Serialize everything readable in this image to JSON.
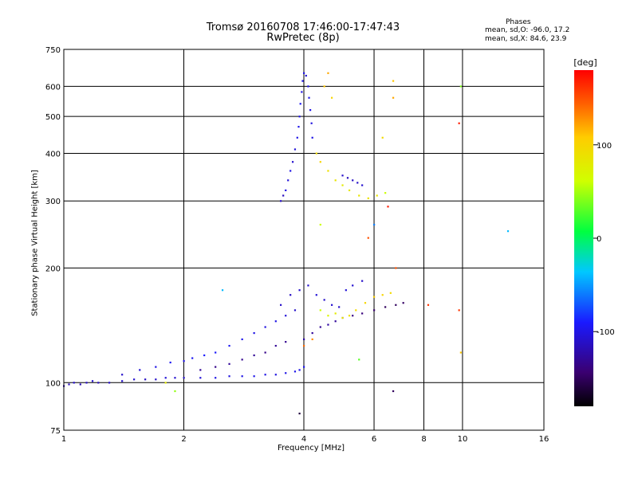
{
  "header": {
    "title_line1": "Tromsø 20160708 17:46:00-17:47:43",
    "title_line2": "RwPretec (8p)",
    "phases_heading": "Phases",
    "phases_o": "mean, sd,O: -96.0, 17.2",
    "phases_x": "mean, sd,X:  84.6, 23.9"
  },
  "chart_data": {
    "type": "scatter",
    "title": "Tromsø 20160708 17:46:00-17:47:43",
    "subtitle": "RwPretec (8p)",
    "xlabel": "Frequency [MHz]",
    "ylabel": "Stationary phase Virtual Height [km]",
    "x_scale": "log",
    "y_scale": "log",
    "xlim": [
      1,
      16
    ],
    "ylim": [
      75,
      750
    ],
    "x_ticks": [
      1,
      2,
      4,
      6,
      8,
      10,
      16
    ],
    "y_ticks": [
      75,
      100,
      200,
      300,
      400,
      500,
      600,
      750
    ],
    "grid": true,
    "colorbar": {
      "label": "[deg]",
      "ticks": [
        100,
        0,
        -100
      ],
      "range": [
        -180,
        180
      ]
    },
    "series": [
      {
        "points": [
          {
            "x": 1.0,
            "y": 98,
            "phase": -120
          },
          {
            "x": 1.03,
            "y": 99,
            "phase": -115
          },
          {
            "x": 1.06,
            "y": 100,
            "phase": -110
          },
          {
            "x": 1.1,
            "y": 99,
            "phase": -118
          },
          {
            "x": 1.14,
            "y": 100,
            "phase": -112
          },
          {
            "x": 1.18,
            "y": 101,
            "phase": -108
          },
          {
            "x": 1.22,
            "y": 100,
            "phase": -115
          },
          {
            "x": 1.3,
            "y": 100,
            "phase": -112
          },
          {
            "x": 1.4,
            "y": 101,
            "phase": -110
          },
          {
            "x": 1.5,
            "y": 102,
            "phase": -108
          },
          {
            "x": 1.6,
            "y": 102,
            "phase": -112
          },
          {
            "x": 1.7,
            "y": 102,
            "phase": -110
          },
          {
            "x": 1.8,
            "y": 103,
            "phase": -105
          },
          {
            "x": 1.9,
            "y": 103,
            "phase": -108
          },
          {
            "x": 2.0,
            "y": 103,
            "phase": -110
          },
          {
            "x": 2.2,
            "y": 103,
            "phase": -105
          },
          {
            "x": 2.4,
            "y": 103,
            "phase": -100
          },
          {
            "x": 2.6,
            "y": 104,
            "phase": -102
          },
          {
            "x": 2.8,
            "y": 104,
            "phase": -100
          },
          {
            "x": 3.0,
            "y": 104,
            "phase": -98
          },
          {
            "x": 3.2,
            "y": 105,
            "phase": -100
          },
          {
            "x": 3.4,
            "y": 105,
            "phase": -102
          },
          {
            "x": 3.6,
            "y": 106,
            "phase": -100
          },
          {
            "x": 3.8,
            "y": 107,
            "phase": -98
          },
          {
            "x": 3.9,
            "y": 108,
            "phase": -100
          },
          {
            "x": 4.0,
            "y": 110,
            "phase": -95
          },
          {
            "x": 1.4,
            "y": 105,
            "phase": -110
          },
          {
            "x": 1.55,
            "y": 108,
            "phase": -105
          },
          {
            "x": 1.7,
            "y": 110,
            "phase": -100
          },
          {
            "x": 1.85,
            "y": 113,
            "phase": -95
          },
          {
            "x": 2.0,
            "y": 114,
            "phase": -100
          },
          {
            "x": 2.1,
            "y": 116,
            "phase": -95
          },
          {
            "x": 2.25,
            "y": 118,
            "phase": -90
          },
          {
            "x": 2.4,
            "y": 120,
            "phase": -92
          },
          {
            "x": 2.6,
            "y": 125,
            "phase": -95
          },
          {
            "x": 2.8,
            "y": 130,
            "phase": -98
          },
          {
            "x": 3.0,
            "y": 135,
            "phase": -100
          },
          {
            "x": 3.2,
            "y": 140,
            "phase": -102
          },
          {
            "x": 3.4,
            "y": 145,
            "phase": -100
          },
          {
            "x": 3.6,
            "y": 150,
            "phase": -105
          },
          {
            "x": 3.8,
            "y": 155,
            "phase": -110
          },
          {
            "x": 2.2,
            "y": 108,
            "phase": -130
          },
          {
            "x": 2.4,
            "y": 110,
            "phase": -135
          },
          {
            "x": 2.6,
            "y": 112,
            "phase": -128
          },
          {
            "x": 2.8,
            "y": 115,
            "phase": -132
          },
          {
            "x": 3.0,
            "y": 118,
            "phase": -130
          },
          {
            "x": 3.2,
            "y": 120,
            "phase": -135
          },
          {
            "x": 3.4,
            "y": 125,
            "phase": -130
          },
          {
            "x": 3.6,
            "y": 128,
            "phase": -132
          },
          {
            "x": 3.5,
            "y": 160,
            "phase": -110
          },
          {
            "x": 3.7,
            "y": 170,
            "phase": -112
          },
          {
            "x": 3.9,
            "y": 175,
            "phase": -110
          },
          {
            "x": 4.1,
            "y": 180,
            "phase": -108
          },
          {
            "x": 4.3,
            "y": 170,
            "phase": -105
          },
          {
            "x": 4.5,
            "y": 165,
            "phase": -110
          },
          {
            "x": 4.7,
            "y": 160,
            "phase": -108
          },
          {
            "x": 4.9,
            "y": 158,
            "phase": -110
          },
          {
            "x": 5.1,
            "y": 175,
            "phase": -105
          },
          {
            "x": 5.3,
            "y": 180,
            "phase": -108
          },
          {
            "x": 5.6,
            "y": 185,
            "phase": -110
          },
          {
            "x": 4.0,
            "y": 130,
            "phase": -125
          },
          {
            "x": 4.2,
            "y": 135,
            "phase": -128
          },
          {
            "x": 4.4,
            "y": 140,
            "phase": -130
          },
          {
            "x": 4.6,
            "y": 142,
            "phase": -125
          },
          {
            "x": 4.8,
            "y": 145,
            "phase": -128
          },
          {
            "x": 5.0,
            "y": 148,
            "phase": -130
          },
          {
            "x": 5.3,
            "y": 150,
            "phase": -135
          },
          {
            "x": 5.6,
            "y": 152,
            "phase": -140
          },
          {
            "x": 6.0,
            "y": 155,
            "phase": -145
          },
          {
            "x": 6.4,
            "y": 158,
            "phase": -150
          },
          {
            "x": 6.8,
            "y": 160,
            "phase": -150
          },
          {
            "x": 7.1,
            "y": 162,
            "phase": -148
          },
          {
            "x": 4.4,
            "y": 155,
            "phase": 60
          },
          {
            "x": 4.6,
            "y": 150,
            "phase": 70
          },
          {
            "x": 4.8,
            "y": 152,
            "phase": 80
          },
          {
            "x": 5.0,
            "y": 148,
            "phase": 85
          },
          {
            "x": 5.2,
            "y": 150,
            "phase": 90
          },
          {
            "x": 5.4,
            "y": 155,
            "phase": 95
          },
          {
            "x": 5.7,
            "y": 162,
            "phase": 100
          },
          {
            "x": 6.0,
            "y": 168,
            "phase": 105
          },
          {
            "x": 6.3,
            "y": 170,
            "phase": 100
          },
          {
            "x": 6.6,
            "y": 172,
            "phase": 95
          },
          {
            "x": 4.2,
            "y": 130,
            "phase": 130
          },
          {
            "x": 4.0,
            "y": 125,
            "phase": 140
          },
          {
            "x": 3.6,
            "y": 320,
            "phase": -100
          },
          {
            "x": 3.65,
            "y": 340,
            "phase": -105
          },
          {
            "x": 3.7,
            "y": 360,
            "phase": -100
          },
          {
            "x": 3.75,
            "y": 380,
            "phase": -108
          },
          {
            "x": 3.8,
            "y": 410,
            "phase": -105
          },
          {
            "x": 3.85,
            "y": 440,
            "phase": -100
          },
          {
            "x": 3.88,
            "y": 470,
            "phase": -98
          },
          {
            "x": 3.9,
            "y": 500,
            "phase": -100
          },
          {
            "x": 3.92,
            "y": 540,
            "phase": -95
          },
          {
            "x": 3.95,
            "y": 580,
            "phase": -100
          },
          {
            "x": 3.97,
            "y": 620,
            "phase": -98
          },
          {
            "x": 4.0,
            "y": 650,
            "phase": -100
          },
          {
            "x": 4.05,
            "y": 640,
            "phase": -105
          },
          {
            "x": 4.1,
            "y": 600,
            "phase": -100
          },
          {
            "x": 4.12,
            "y": 560,
            "phase": -98
          },
          {
            "x": 4.15,
            "y": 520,
            "phase": -100
          },
          {
            "x": 4.18,
            "y": 480,
            "phase": -102
          },
          {
            "x": 4.2,
            "y": 440,
            "phase": -100
          },
          {
            "x": 3.55,
            "y": 310,
            "phase": -115
          },
          {
            "x": 3.5,
            "y": 300,
            "phase": -112
          },
          {
            "x": 4.3,
            "y": 400,
            "phase": 95
          },
          {
            "x": 4.4,
            "y": 380,
            "phase": 100
          },
          {
            "x": 4.6,
            "y": 360,
            "phase": 90
          },
          {
            "x": 4.8,
            "y": 340,
            "phase": 85
          },
          {
            "x": 5.0,
            "y": 330,
            "phase": 80
          },
          {
            "x": 5.2,
            "y": 320,
            "phase": 82
          },
          {
            "x": 5.5,
            "y": 310,
            "phase": 85
          },
          {
            "x": 5.8,
            "y": 305,
            "phase": 88
          },
          {
            "x": 6.1,
            "y": 310,
            "phase": 85
          },
          {
            "x": 6.4,
            "y": 315,
            "phase": 60
          },
          {
            "x": 5.0,
            "y": 350,
            "phase": -110
          },
          {
            "x": 5.15,
            "y": 345,
            "phase": -115
          },
          {
            "x": 5.3,
            "y": 340,
            "phase": -112
          },
          {
            "x": 5.45,
            "y": 335,
            "phase": -110
          },
          {
            "x": 5.6,
            "y": 330,
            "phase": -108
          },
          {
            "x": 4.6,
            "y": 650,
            "phase": 120
          },
          {
            "x": 4.5,
            "y": 600,
            "phase": 110
          },
          {
            "x": 4.7,
            "y": 560,
            "phase": 100
          },
          {
            "x": 6.7,
            "y": 620,
            "phase": 110
          },
          {
            "x": 6.7,
            "y": 560,
            "phase": 120
          },
          {
            "x": 9.8,
            "y": 480,
            "phase": 170
          },
          {
            "x": 6.3,
            "y": 440,
            "phase": 95
          },
          {
            "x": 6.5,
            "y": 290,
            "phase": 170
          },
          {
            "x": 6.8,
            "y": 200,
            "phase": 150
          },
          {
            "x": 8.2,
            "y": 160,
            "phase": 160
          },
          {
            "x": 9.8,
            "y": 155,
            "phase": 160
          },
          {
            "x": 9.9,
            "y": 120,
            "phase": 110
          },
          {
            "x": 6.7,
            "y": 95,
            "phase": -150
          },
          {
            "x": 3.9,
            "y": 83,
            "phase": -160
          },
          {
            "x": 9.9,
            "y": 600,
            "phase": 40
          },
          {
            "x": 13.0,
            "y": 250,
            "phase": -40
          },
          {
            "x": 1.8,
            "y": 100,
            "phase": 80
          },
          {
            "x": 2.5,
            "y": 175,
            "phase": -40
          },
          {
            "x": 1.9,
            "y": 95,
            "phase": 45
          },
          {
            "x": 5.5,
            "y": 115,
            "phase": 30
          },
          {
            "x": 4.4,
            "y": 260,
            "phase": 60
          },
          {
            "x": 5.8,
            "y": 240,
            "phase": 150
          },
          {
            "x": 6.0,
            "y": 260,
            "phase": -60
          }
        ]
      }
    ]
  }
}
